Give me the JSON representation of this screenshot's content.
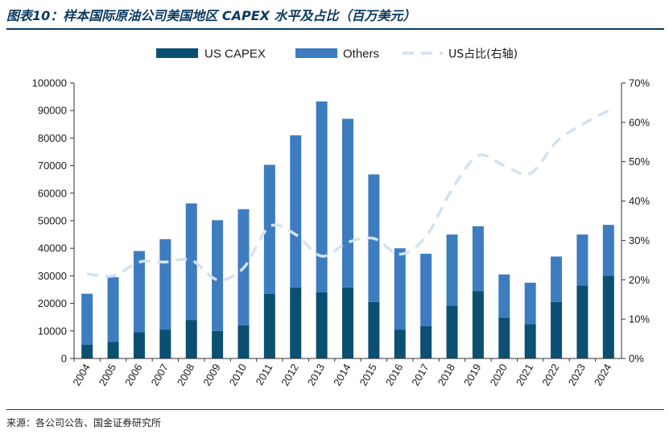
{
  "title": "图表10：样本国际原油公司美国地区 CAPEX 水平及占比（百万美元）",
  "source": "来源：各公司公告、国金证券研究所",
  "colors": {
    "us_capex": "#0b4f72",
    "others": "#3d7dbf",
    "us_share": "#d3e2ef",
    "title": "#0b3a5e"
  },
  "chart_data": {
    "type": "bar",
    "stacked": true,
    "categories": [
      "2004",
      "2005",
      "2006",
      "2007",
      "2008",
      "2009",
      "2010",
      "2011",
      "2012",
      "2013",
      "2014",
      "2015",
      "2016",
      "2017",
      "2018",
      "2019",
      "2020",
      "2021",
      "2022",
      "2023",
      "2024"
    ],
    "series": [
      {
        "name": "US CAPEX",
        "kind": "bar",
        "axis": "left",
        "values": [
          5000,
          6000,
          9500,
          10500,
          14000,
          10000,
          12000,
          23500,
          25800,
          24000,
          25800,
          20500,
          10500,
          11700,
          19200,
          24500,
          14800,
          12500,
          20500,
          26500,
          30000
        ]
      },
      {
        "name": "Others",
        "kind": "bar",
        "axis": "left",
        "values": [
          18500,
          23500,
          29500,
          32800,
          42300,
          40200,
          42200,
          46800,
          55200,
          69300,
          61200,
          46300,
          29500,
          26300,
          25800,
          23500,
          15700,
          15000,
          16500,
          18500,
          18500
        ]
      },
      {
        "name": "US占比(右轴)",
        "kind": "line",
        "axis": "right",
        "dashed": true,
        "values": [
          21.5,
          21.0,
          24.5,
          24.5,
          25.0,
          20.0,
          23.0,
          33.5,
          31.5,
          26.0,
          29.5,
          30.5,
          26.5,
          31.0,
          43.0,
          51.5,
          49.0,
          47.0,
          55.0,
          59.5,
          63.0
        ]
      }
    ],
    "y_left": {
      "ylim": [
        0,
        100000
      ],
      "ticks": [
        "0",
        "10000",
        "20000",
        "30000",
        "40000",
        "50000",
        "60000",
        "70000",
        "80000",
        "90000",
        "100000"
      ]
    },
    "y_right": {
      "ylim": [
        0,
        70
      ],
      "ticks": [
        "0%",
        "10%",
        "20%",
        "30%",
        "40%",
        "50%",
        "60%",
        "70%"
      ]
    },
    "grid": false,
    "legend": {
      "position": "top",
      "items": [
        "US CAPEX",
        "Others",
        "US占比(右轴)"
      ]
    }
  }
}
